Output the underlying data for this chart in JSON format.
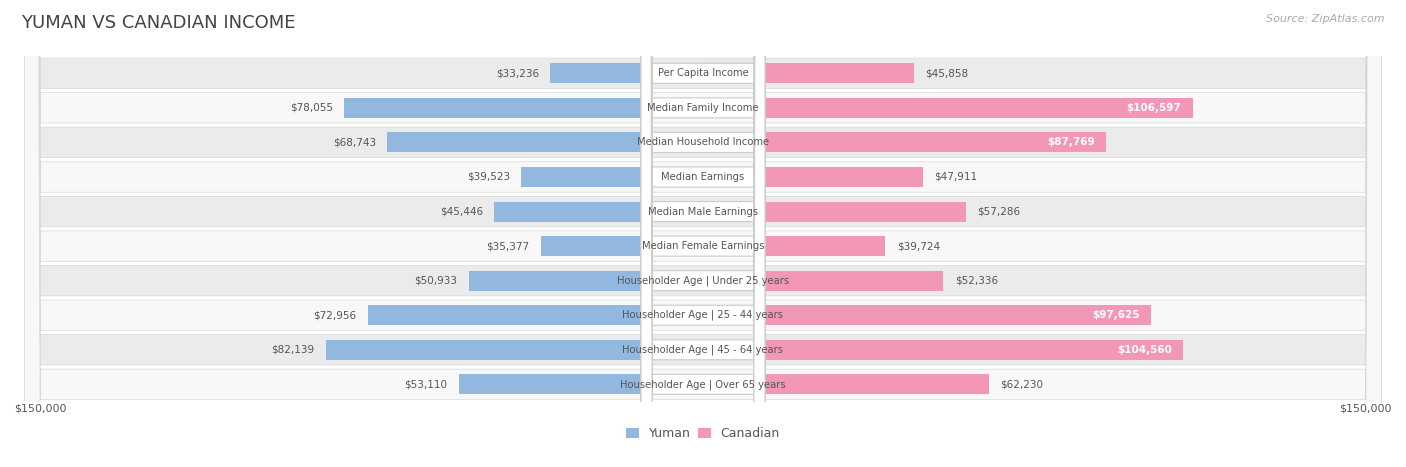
{
  "title": "YUMAN VS CANADIAN INCOME",
  "source": "Source: ZipAtlas.com",
  "categories": [
    "Per Capita Income",
    "Median Family Income",
    "Median Household Income",
    "Median Earnings",
    "Median Male Earnings",
    "Median Female Earnings",
    "Householder Age | Under 25 years",
    "Householder Age | 25 - 44 years",
    "Householder Age | 45 - 64 years",
    "Householder Age | Over 65 years"
  ],
  "yuman_values": [
    33236,
    78055,
    68743,
    39523,
    45446,
    35377,
    50933,
    72956,
    82139,
    53110
  ],
  "canadian_values": [
    45858,
    106597,
    87769,
    47911,
    57286,
    39724,
    52336,
    97625,
    104560,
    62230
  ],
  "yuman_color": "#92b8e0",
  "canadian_color": "#f297b8",
  "yuman_label": "Yuman",
  "canadian_label": "Canadian",
  "axis_max": 150000,
  "axis_label_left": "$150,000",
  "axis_label_right": "$150,000",
  "bg_color": "#ffffff",
  "row_bg_even": "#ebebeb",
  "row_bg_odd": "#f8f8f8",
  "title_color": "#444444",
  "label_color": "#555555",
  "value_color_dark": "#555555",
  "value_color_light": "#ffffff",
  "center_label_bg": "#ffffff",
  "center_label_color": "#555555",
  "center_label_border": "#cccccc"
}
